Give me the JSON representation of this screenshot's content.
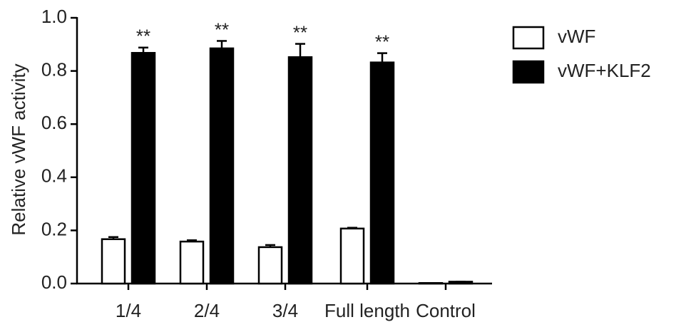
{
  "chart_data": {
    "type": "bar",
    "y_label": "Relative vWF activity",
    "categories": [
      "1/4",
      "2/4",
      "3/4",
      "Full length",
      "Control"
    ],
    "series": [
      {
        "name": "vWF",
        "color": "#ffffff",
        "values": [
          0.167,
          0.158,
          0.137,
          0.207,
          0.002
        ],
        "errors": [
          0.008,
          0.005,
          0.008,
          0.003,
          0.0
        ]
      },
      {
        "name": "vWF+KLF2",
        "color": "#000000",
        "values": [
          0.868,
          0.885,
          0.852,
          0.832,
          0.007
        ],
        "errors": [
          0.02,
          0.028,
          0.05,
          0.035,
          0.0
        ],
        "annotations": [
          "**",
          "**",
          "**",
          "**"
        ]
      }
    ],
    "ylim": [
      0,
      1.0
    ],
    "yticks": [
      {
        "value": 0,
        "label": "0.0"
      },
      0.2,
      0.4,
      0.6,
      0.8,
      {
        "value": 1.0,
        "label": "1.0"
      }
    ],
    "grid": false,
    "legend": "right"
  }
}
